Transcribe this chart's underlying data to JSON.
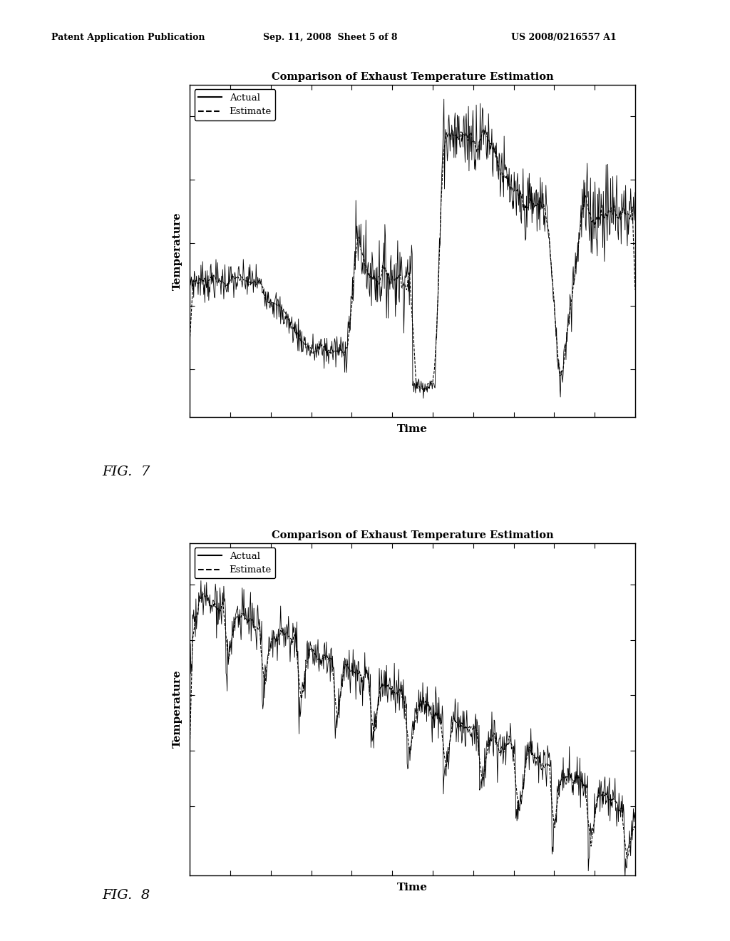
{
  "title": "Comparison of Exhaust Temperature Estimation",
  "xlabel": "Time",
  "ylabel": "Temperature",
  "legend_actual": "Actual",
  "legend_estimate": "Estimate",
  "fig7_label": "FIG.  7",
  "fig8_label": "FIG.  8",
  "header_left": "Patent Application Publication",
  "header_mid": "Sep. 11, 2008  Sheet 5 of 8",
  "header_right": "US 2008/0216557 A1",
  "background_color": "#ffffff",
  "line_color": "#000000"
}
